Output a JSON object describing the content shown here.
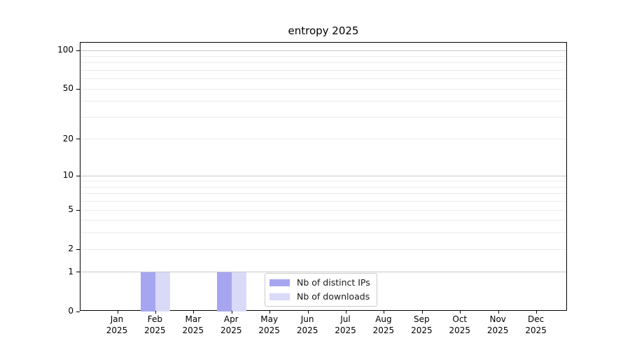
{
  "title": "entropy 2025",
  "year": "2025",
  "legend": {
    "items": [
      {
        "label": "Nb of distinct IPs",
        "color": "#a6a6f0"
      },
      {
        "label": "Nb of downloads",
        "color": "#d9d9f8"
      }
    ]
  },
  "axes": {
    "y_ticks": [
      0,
      1,
      2,
      5,
      10,
      20,
      50,
      100
    ],
    "x_ticks": [
      "Jan",
      "Feb",
      "Mar",
      "Apr",
      "May",
      "Jun",
      "Jul",
      "Aug",
      "Sep",
      "Oct",
      "Nov",
      "Dec"
    ]
  },
  "colors": {
    "bar_distinct_ips": "#a6a6f0",
    "bar_downloads": "#d9d9f8",
    "grid_major": "#c8c8c8",
    "grid_minor": "#ececec",
    "axis": "#000000",
    "legend_border": "#cccccc",
    "background": "#ffffff"
  },
  "chart_data": {
    "type": "bar",
    "title": "entropy 2025",
    "categories": [
      "Jan 2025",
      "Feb 2025",
      "Mar 2025",
      "Apr 2025",
      "May 2025",
      "Jun 2025",
      "Jul 2025",
      "Aug 2025",
      "Sep 2025",
      "Oct 2025",
      "Nov 2025",
      "Dec 2025"
    ],
    "series": [
      {
        "name": "Nb of distinct IPs",
        "color": "#a6a6f0",
        "values": [
          0,
          1,
          0,
          1,
          0,
          0,
          0,
          0,
          0,
          0,
          0,
          0
        ]
      },
      {
        "name": "Nb of downloads",
        "color": "#d9d9f8",
        "values": [
          0,
          1,
          0,
          1,
          0,
          0,
          0,
          0,
          0,
          0,
          0,
          0
        ]
      }
    ],
    "xlabel": "",
    "ylabel": "",
    "yscale": "log1p",
    "ylim": [
      0,
      115
    ],
    "y_tick_values": [
      0,
      1,
      2,
      5,
      10,
      20,
      50,
      100
    ],
    "grid_major_values": [
      1,
      10,
      100
    ],
    "grid_minor_values": [
      2,
      3,
      4,
      5,
      6,
      7,
      8,
      9,
      20,
      30,
      40,
      50,
      60,
      70,
      80,
      90
    ],
    "grid": true,
    "legend_position": "lower center"
  }
}
